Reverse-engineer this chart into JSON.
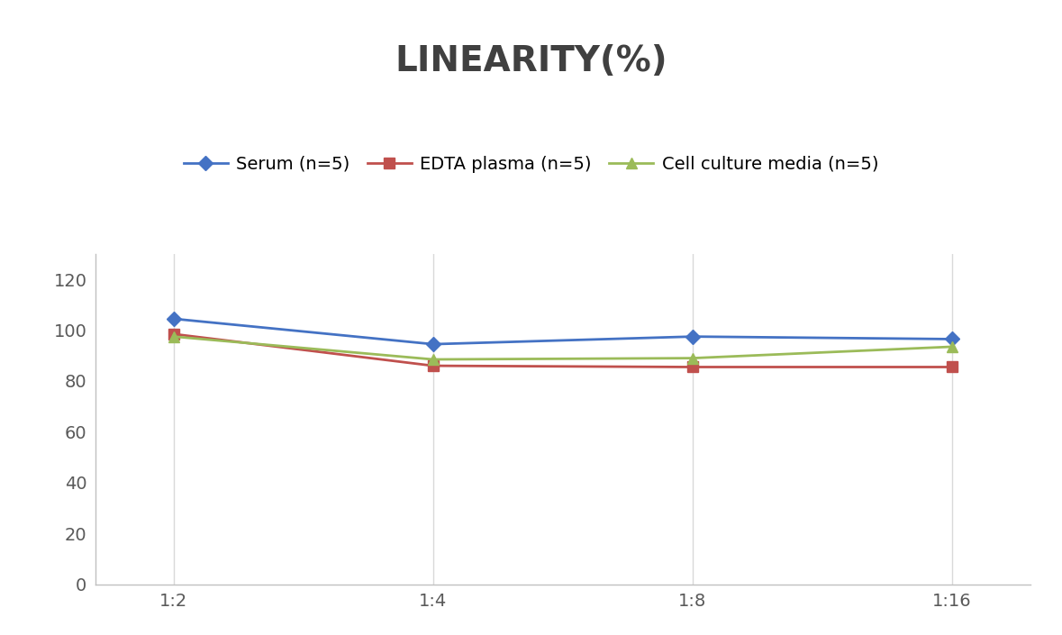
{
  "title": "LINEARITY(%)",
  "title_fontsize": 28,
  "title_fontweight": "bold",
  "title_color": "#404040",
  "x_labels": [
    "1:2",
    "1:4",
    "1:8",
    "1:16"
  ],
  "x_positions": [
    0,
    1,
    2,
    3
  ],
  "series": [
    {
      "label": "Serum (n=5)",
      "values": [
        104.5,
        94.5,
        97.5,
        96.5
      ],
      "color": "#4472C4",
      "marker": "D",
      "markersize": 8,
      "linewidth": 2
    },
    {
      "label": "EDTA plasma (n=5)",
      "values": [
        98.5,
        86.0,
        85.5,
        85.5
      ],
      "color": "#C0504D",
      "marker": "s",
      "markersize": 8,
      "linewidth": 2
    },
    {
      "label": "Cell culture media (n=5)",
      "values": [
        97.5,
        88.5,
        89.0,
        93.5
      ],
      "color": "#9BBB59",
      "marker": "^",
      "markersize": 9,
      "linewidth": 2
    }
  ],
  "ylim": [
    0,
    130
  ],
  "yticks": [
    0,
    20,
    40,
    60,
    80,
    100,
    120
  ],
  "grid_color": "#D9D9D9",
  "background_color": "#FFFFFF",
  "legend_fontsize": 14,
  "tick_fontsize": 14,
  "tick_color": "#595959"
}
